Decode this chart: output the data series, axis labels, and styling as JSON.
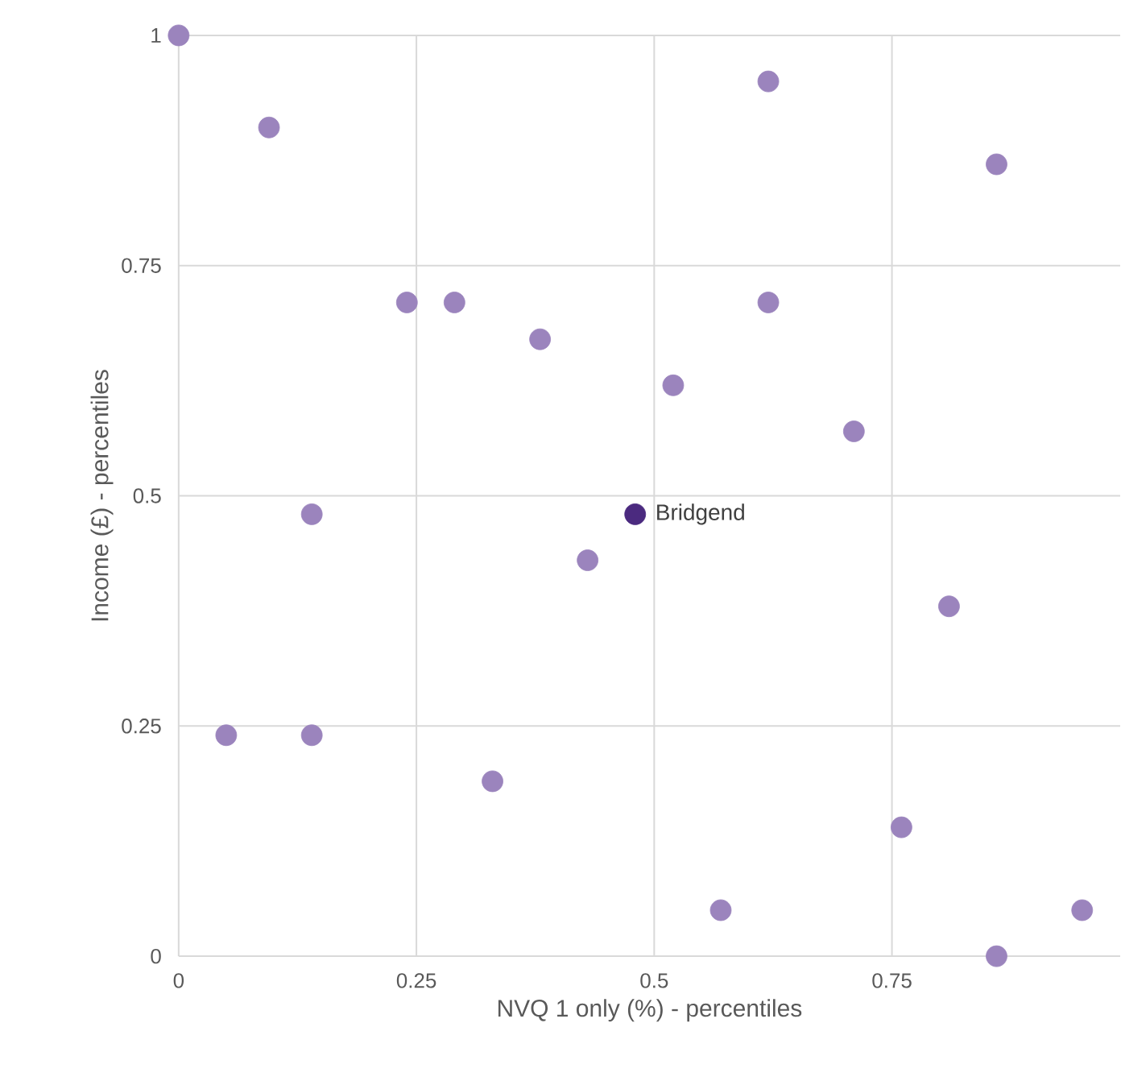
{
  "chart_data": {
    "type": "scatter",
    "xlabel": "NVQ 1 only (%) - percentiles",
    "ylabel": "Income (£) - percentiles",
    "xlim": [
      0,
      0.99
    ],
    "ylim": [
      0,
      1
    ],
    "xticks": [
      0,
      0.25,
      0.5,
      0.75
    ],
    "yticks": [
      0,
      0.25,
      0.5,
      0.75,
      1
    ],
    "grid": true,
    "series": [
      {
        "color": "#9b84bd",
        "x": [
          0,
          0.095,
          0.62,
          0.86,
          0.24,
          0.29,
          0.62,
          0.38,
          0.52,
          0.71,
          0.14,
          0.43,
          0.81,
          0.05,
          0.14,
          0.33,
          0.76,
          0.57,
          0.86,
          0.95
        ],
        "values": [
          1,
          0.9,
          0.95,
          0.86,
          0.71,
          0.71,
          0.71,
          0.67,
          0.62,
          0.57,
          0.48,
          0.43,
          0.38,
          0.24,
          0.24,
          0.19,
          0.14,
          0.05,
          0,
          0.05
        ]
      },
      {
        "name": "Bridgend",
        "color": "#4b2a7f",
        "x": [
          0.48
        ],
        "values": [
          0.48
        ]
      }
    ]
  }
}
